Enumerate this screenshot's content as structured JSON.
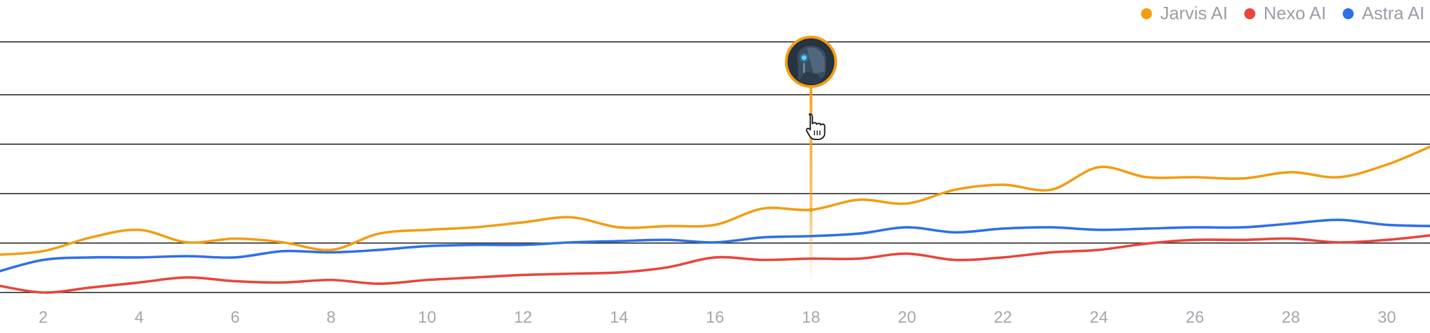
{
  "chart_data": {
    "type": "line",
    "title": "",
    "xlabel": "",
    "ylabel": "",
    "x": [
      1,
      2,
      3,
      4,
      5,
      6,
      7,
      8,
      9,
      10,
      11,
      12,
      13,
      14,
      15,
      16,
      17,
      18,
      19,
      20,
      21,
      22,
      23,
      24,
      25,
      26,
      27,
      28,
      29,
      30,
      31
    ],
    "x_ticks": [
      2,
      4,
      6,
      8,
      10,
      12,
      14,
      16,
      18,
      20,
      22,
      24,
      26,
      28,
      30
    ],
    "xlim": [
      1.1,
      30.9
    ],
    "ylim": [
      0,
      10
    ],
    "grid": true,
    "legend": "top-right",
    "series": [
      {
        "name": "Jarvis AI",
        "color": "#f39c12",
        "values": [
          1.5,
          1.65,
          2.2,
          2.5,
          2.0,
          2.15,
          2.0,
          1.7,
          2.35,
          2.5,
          2.6,
          2.8,
          3.0,
          2.6,
          2.65,
          2.7,
          3.35,
          3.3,
          3.7,
          3.55,
          4.1,
          4.3,
          4.1,
          5.0,
          4.6,
          4.6,
          4.55,
          4.8,
          4.6,
          5.1,
          5.9
        ]
      },
      {
        "name": "Nexo AI",
        "color": "#e8453c",
        "values": [
          0.3,
          0.0,
          0.2,
          0.4,
          0.6,
          0.45,
          0.4,
          0.5,
          0.35,
          0.5,
          0.6,
          0.7,
          0.75,
          0.8,
          1.0,
          1.4,
          1.3,
          1.35,
          1.35,
          1.55,
          1.3,
          1.4,
          1.6,
          1.7,
          1.95,
          2.1,
          2.1,
          2.15,
          2.0,
          2.1,
          2.3
        ]
      },
      {
        "name": "Astra AI",
        "color": "#2f6fe8",
        "values": [
          0.8,
          1.3,
          1.4,
          1.4,
          1.45,
          1.4,
          1.65,
          1.6,
          1.7,
          1.85,
          1.9,
          1.9,
          2.0,
          2.05,
          2.1,
          2.0,
          2.2,
          2.25,
          2.35,
          2.6,
          2.4,
          2.55,
          2.6,
          2.5,
          2.55,
          2.6,
          2.6,
          2.75,
          2.9,
          2.7,
          2.65
        ]
      }
    ],
    "highlight": {
      "x": 18,
      "series": "Jarvis AI",
      "marker_icon": "robot-avatar-icon",
      "cursor_icon": "hand-pointer-icon"
    }
  }
}
